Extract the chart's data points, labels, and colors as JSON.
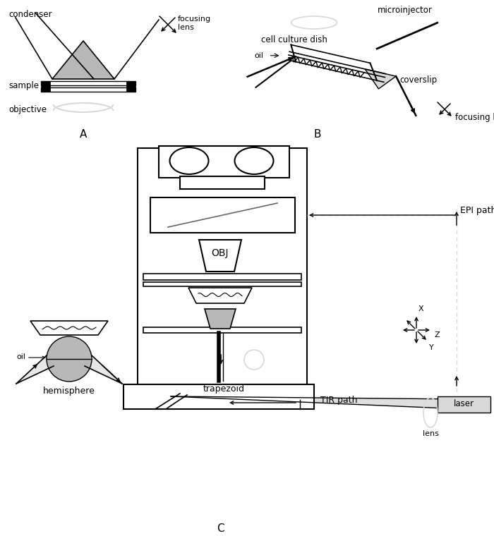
{
  "bg_color": "#ffffff",
  "line_color": "#000000",
  "gray_fill": "#b8b8b8",
  "light_gray": "#d8d8d8",
  "dark_gray": "#666666",
  "fig_label_A": "A",
  "fig_label_B": "B",
  "fig_label_C": "C",
  "labels": {
    "condenser": "condenser",
    "sample": "sample",
    "objective": "objective",
    "focusing_lens_A": "focusing\nlens",
    "cell_culture_dish": "cell culture dish",
    "microinjector": "microinjector",
    "oil_B": "oil",
    "coverslip": "coverslip",
    "focusing_lens_B": "focusing lens",
    "OBJ": "OBJ",
    "hemisphere": "hemisphere",
    "trapezoid": "trapezoid",
    "EPI_path": "EPI path",
    "TIR_path": "TIR path",
    "laser": "laser",
    "lens": "lens",
    "oil_C": "oil",
    "X": "X",
    "Y": "Y",
    "Z": "Z"
  }
}
